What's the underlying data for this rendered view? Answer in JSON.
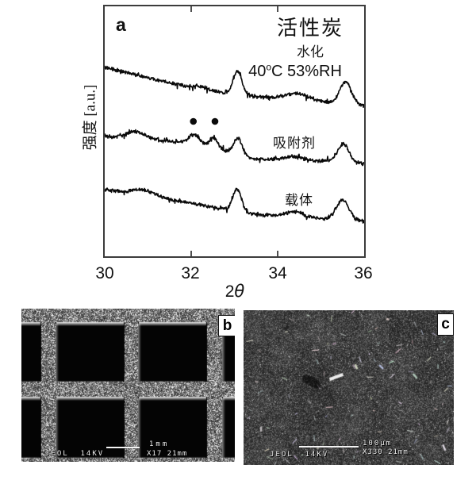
{
  "figure": {
    "panel_a": {
      "label": "a",
      "ylabel": "强度  [a.u.]",
      "xlabel_prefix": "2",
      "xlabel_theta": "θ",
      "x_ticks": [
        "30",
        "32",
        "34",
        "36"
      ],
      "annotations": {
        "title": "活性炭",
        "subtitle": "水化",
        "condition_pre": "40",
        "condition_sup": "o",
        "condition_post": "C 53%RH",
        "series2_label": "吸附剂",
        "series3_label": "载体"
      }
    },
    "panel_b": {
      "label": "b",
      "credit": "JEOL  14KV",
      "scale_text": "1mm",
      "mag_text": "X17 21mm"
    },
    "panel_c": {
      "label": "c",
      "credit": "JEOL  14KV",
      "scale_text": "100µm",
      "mag_text": "X330 21mm"
    }
  },
  "chart_data": {
    "type": "line",
    "title": "活性炭",
    "xlabel": "2θ",
    "ylabel": "强度 [a.u.]",
    "xlim": [
      30,
      36
    ],
    "x_ticks": [
      30,
      32,
      34,
      36
    ],
    "mirror_ticks": [
      32,
      34
    ],
    "grid": false,
    "legend_position": "in-plot right (text annotations)",
    "y_units": "arbitrary units; y values below are vertical offsets from plot top in px (smaller = higher intensity), plot height 315",
    "series": [
      {
        "name": "活性炭 水化 40°C 53%RH (activated carbon, hydrated)",
        "baseline": [
          [
            30,
            77
          ],
          [
            31,
            90
          ],
          [
            32,
            102
          ],
          [
            33,
            111
          ],
          [
            34,
            116
          ],
          [
            35,
            120
          ],
          [
            36,
            125
          ]
        ],
        "peaks": [
          [
            32.2,
            0.15,
            3
          ],
          [
            33.07,
            0.1,
            30
          ],
          [
            34.45,
            0.26,
            8
          ],
          [
            35.57,
            0.13,
            28
          ]
        ],
        "noise": 2.4
      },
      {
        "name": "吸附剂 (adsorbent)",
        "baseline": [
          [
            30,
            164
          ],
          [
            31,
            168
          ],
          [
            32,
            172
          ],
          [
            32.8,
            183
          ],
          [
            33.4,
            192
          ],
          [
            34.2,
            194
          ],
          [
            35.2,
            195
          ],
          [
            36,
            199
          ]
        ],
        "peaks": [
          [
            30.72,
            0.22,
            9
          ],
          [
            32.08,
            0.12,
            12
          ],
          [
            32.52,
            0.09,
            14
          ],
          [
            33.08,
            0.1,
            21
          ],
          [
            34.35,
            0.2,
            5
          ],
          [
            35.52,
            0.13,
            23
          ]
        ],
        "noise": 2.6
      },
      {
        "name": "载体 (support)",
        "baseline": [
          [
            30,
            231
          ],
          [
            31,
            239
          ],
          [
            32,
            248
          ],
          [
            32.7,
            255
          ],
          [
            33.5,
            262
          ],
          [
            34.5,
            266
          ],
          [
            36,
            271
          ]
        ],
        "peaks": [
          [
            30.9,
            0.25,
            7
          ],
          [
            33.06,
            0.1,
            28
          ],
          [
            34.4,
            0.2,
            7
          ],
          [
            35.5,
            0.15,
            25
          ]
        ],
        "noise": 2.4
      }
    ],
    "markers": {
      "symbol": "●",
      "meaning": "dots flagging adsorbent peaks",
      "positions": [
        [
          32.05,
          145
        ],
        [
          32.55,
          145
        ]
      ],
      "radius": 4.3
    }
  }
}
